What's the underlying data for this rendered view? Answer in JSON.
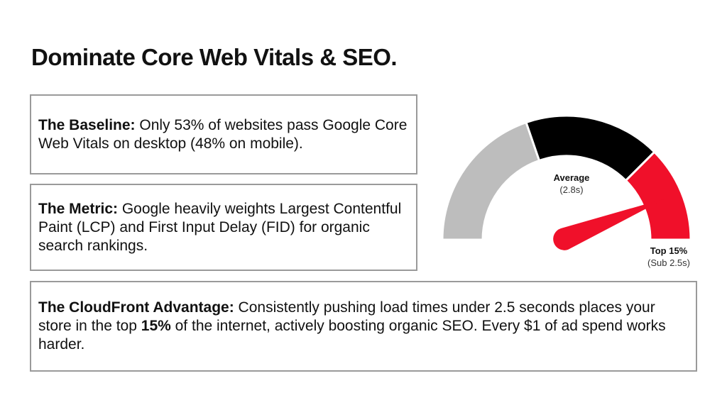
{
  "title": "Dominate Core Web Vitals & SEO.",
  "cards": [
    {
      "label": "The Baseline:",
      "text": " Only 53% of websites pass Google Core Web Vitals on desktop (48% on mobile)."
    },
    {
      "label": "The Metric:",
      "text": " Google heavily weights Largest Contentful Paint (LCP) and First Input Delay (FID) for organic search rankings."
    },
    {
      "label": "The CloudFront Advantage:",
      "text_before": " Consistently pushing load times under 2.5 seconds places your store in the top ",
      "highlight": "15%",
      "text_after": " of the internet, actively boosting organic SEO. Every $1 of ad spend works harder."
    }
  ],
  "gauge": {
    "average_label": "Average",
    "average_value": "(2.8s)",
    "top_label": "Top 15%",
    "top_value": "(Sub 2.5s)",
    "colors": {
      "slow": "#bdbdbd",
      "average": "#000000",
      "fast": "#f0102a"
    }
  }
}
